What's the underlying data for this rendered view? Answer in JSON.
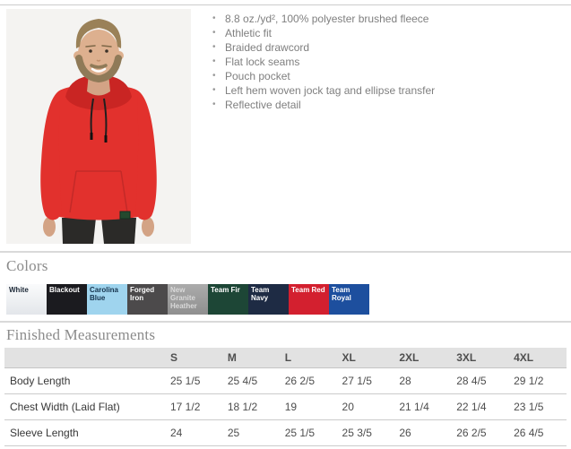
{
  "product": {
    "photo_alt": "Man wearing a red hooded pullover sweatshirt",
    "features": [
      "8.8 oz./yd², 100% polyester brushed fleece",
      "Athletic fit",
      "Braided drawcord",
      "Flat lock seams",
      "Pouch pocket",
      "Left hem woven jock tag and ellipse transfer",
      "Reflective detail"
    ]
  },
  "colors_section": {
    "heading": "Colors",
    "swatches": [
      {
        "name": "White",
        "bg": "#fafbfc",
        "bg2": "#e3e6ea",
        "text_color": "#1c2836"
      },
      {
        "name": "Blackout",
        "bg": "#1b1b1f",
        "text_color": "#ffffff"
      },
      {
        "name": "Carolina Blue",
        "bg": "#9fd4ee",
        "text_color": "#16344e"
      },
      {
        "name": "Forged Iron",
        "bg": "#4c4a4b",
        "text_color": "#ffffff"
      },
      {
        "name": "New Granite Heather",
        "bg": "#ababab",
        "bg2": "#8f8f8f",
        "text_color": "#d9d9d9"
      },
      {
        "name": "Team Fir",
        "bg": "#1d4636",
        "text_color": "#ffffff"
      },
      {
        "name": "Team Navy",
        "bg": "#1e2b44",
        "text_color": "#ffffff"
      },
      {
        "name": "Team Red",
        "bg": "#d3202f",
        "text_color": "#ffffff"
      },
      {
        "name": "Team Royal",
        "bg": "#1d4f9e",
        "text_color": "#ffffff"
      }
    ]
  },
  "measurements": {
    "heading": "Finished Measurements",
    "sizes": [
      "S",
      "M",
      "L",
      "XL",
      "2XL",
      "3XL",
      "4XL"
    ],
    "rows": [
      {
        "label": "Body Length",
        "values": [
          "25 1/5",
          "25 4/5",
          "26 2/5",
          "27 1/5",
          "28",
          "28 4/5",
          "29 1/2"
        ]
      },
      {
        "label": "Chest Width (Laid Flat)",
        "values": [
          "17 1/2",
          "18 1/2",
          "19",
          "20",
          "21 1/4",
          "22 1/4",
          "23 1/5"
        ]
      },
      {
        "label": "Sleeve Length",
        "values": [
          "24",
          "25",
          "25 1/5",
          "25 3/5",
          "26",
          "26 2/5",
          "26 4/5"
        ]
      }
    ]
  }
}
